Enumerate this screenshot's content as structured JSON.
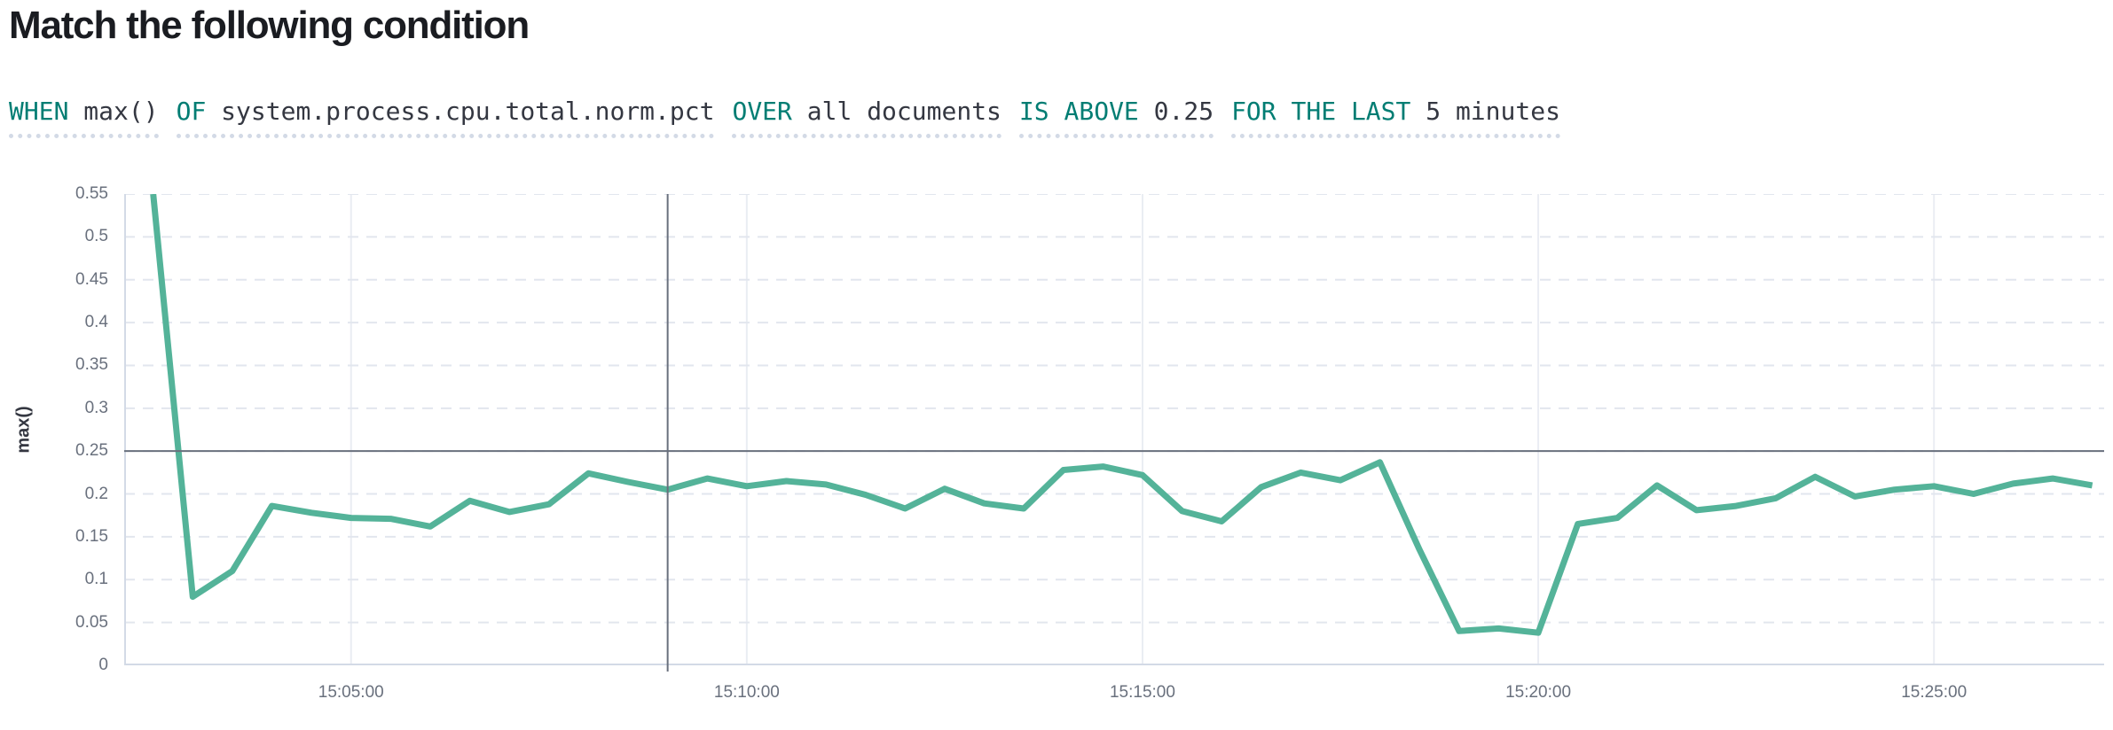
{
  "page": {
    "title": "Match the following condition"
  },
  "expression": {
    "segments": [
      {
        "keyword": "WHEN",
        "value": "max()"
      },
      {
        "keyword": "OF",
        "value": "system.process.cpu.total.norm.pct"
      },
      {
        "keyword": "OVER",
        "value": "all documents"
      },
      {
        "keyword": "IS ABOVE",
        "value": "0.25"
      },
      {
        "keyword": "FOR THE LAST",
        "value": "5 minutes"
      }
    ]
  },
  "chart_data": {
    "type": "line",
    "title": "",
    "xlabel": "",
    "ylabel": "max()",
    "legend_position": "none",
    "grid": true,
    "ylim": [
      0,
      0.55
    ],
    "xlim": [
      "15:02:08",
      "15:27:09"
    ],
    "y_ticks": [
      0,
      0.05,
      0.1,
      0.15,
      0.2,
      0.25,
      0.3,
      0.35,
      0.4,
      0.45,
      0.5,
      0.55
    ],
    "x_ticks": [
      "15:05:00",
      "15:10:00",
      "15:15:00",
      "15:20:00",
      "15:25:00"
    ],
    "threshold": 0.25,
    "annotation_time": "15:09:00",
    "series": [
      {
        "name": "max()",
        "x": [
          "15:02:30",
          "15:03:00",
          "15:03:30",
          "15:04:00",
          "15:04:30",
          "15:05:00",
          "15:05:30",
          "15:06:00",
          "15:06:30",
          "15:07:00",
          "15:07:30",
          "15:08:00",
          "15:08:30",
          "15:09:00",
          "15:09:30",
          "15:10:00",
          "15:10:30",
          "15:11:00",
          "15:11:30",
          "15:12:00",
          "15:12:30",
          "15:13:00",
          "15:13:30",
          "15:14:00",
          "15:14:30",
          "15:15:00",
          "15:15:30",
          "15:16:00",
          "15:16:30",
          "15:17:00",
          "15:17:30",
          "15:18:00",
          "15:18:30",
          "15:19:00",
          "15:19:30",
          "15:20:00",
          "15:20:30",
          "15:21:00",
          "15:21:30",
          "15:22:00",
          "15:22:30",
          "15:23:00",
          "15:23:30",
          "15:24:00",
          "15:24:30",
          "15:25:00",
          "15:25:30",
          "15:26:00",
          "15:26:30",
          "15:27:00"
        ],
        "values": [
          0.55,
          0.08,
          0.11,
          0.186,
          0.178,
          0.172,
          0.171,
          0.162,
          0.192,
          0.179,
          0.188,
          0.224,
          0.214,
          0.205,
          0.218,
          0.209,
          0.215,
          0.211,
          0.199,
          0.183,
          0.206,
          0.189,
          0.183,
          0.228,
          0.232,
          0.222,
          0.18,
          0.168,
          0.208,
          0.225,
          0.216,
          0.237,
          0.135,
          0.04,
          0.043,
          0.038,
          0.165,
          0.172,
          0.21,
          0.181,
          0.186,
          0.195,
          0.22,
          0.197,
          0.205,
          0.209,
          0.2,
          0.212,
          0.218,
          0.21
        ]
      }
    ]
  },
  "colors": {
    "title_text": "#1a1c21",
    "keyword_text": "#017d73",
    "value_text": "#343741",
    "underline": "#d3dae6",
    "tick_label": "#69707d",
    "axis_line": "#d3dae6",
    "h_gridline": "#e2e6ee",
    "v_gridline": "#eaedf3",
    "threshold_line": "#69707d",
    "annotation_line": "#69707d",
    "series_line": "#54b399"
  }
}
